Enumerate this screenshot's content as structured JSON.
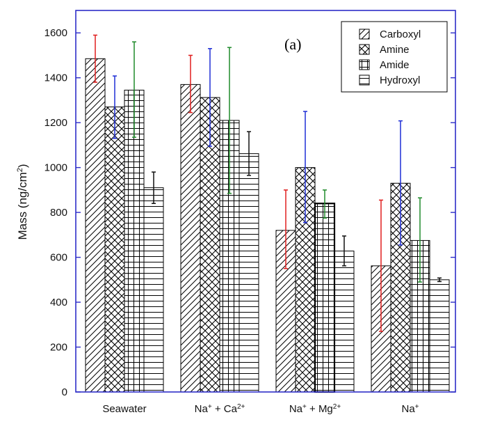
{
  "chart_data": {
    "type": "bar",
    "panel_label": "(a)",
    "ylabel": "Mass (ng/cm²)",
    "ylabel_parts": {
      "base": "Mass (ng/cm",
      "sup": "2",
      "end": ")"
    },
    "ylim": [
      0,
      1700
    ],
    "yticks": [
      0,
      200,
      400,
      600,
      800,
      1000,
      1200,
      1400,
      1600
    ],
    "legend_position": "top-right",
    "categories": [
      "Seawater",
      "Na+ + Ca2+",
      "Na+ + Mg2+",
      "Na+"
    ],
    "category_label_parts": [
      [
        {
          "t": "Seawater",
          "sup": ""
        }
      ],
      [
        {
          "t": "Na",
          "sup": "+"
        },
        {
          "t": " + Ca",
          "sup": "2+"
        }
      ],
      [
        {
          "t": "Na",
          "sup": "+"
        },
        {
          "t": " + Mg",
          "sup": "2+"
        }
      ],
      [
        {
          "t": "Na",
          "sup": "+"
        }
      ]
    ],
    "series": [
      {
        "name": "Carboxyl",
        "pattern": "diag",
        "error_color": "#e01e1e",
        "values": [
          1485,
          1370,
          720,
          562
        ],
        "err_low": [
          1380,
          1245,
          550,
          270
        ],
        "err_high": [
          1590,
          1500,
          900,
          855
        ]
      },
      {
        "name": "Amine",
        "pattern": "cross",
        "error_color": "#1e2ed6",
        "values": [
          1270,
          1312,
          1000,
          930
        ],
        "err_low": [
          1130,
          1095,
          755,
          655
        ],
        "err_high": [
          1408,
          1530,
          1250,
          1208
        ]
      },
      {
        "name": "Amide",
        "pattern": "grid",
        "error_color": "#1f8a2a",
        "values": [
          1345,
          1210,
          840,
          675
        ],
        "err_low": [
          1135,
          885,
          775,
          490
        ],
        "err_high": [
          1560,
          1535,
          900,
          865
        ]
      },
      {
        "name": "Hydroxyl",
        "pattern": "horiz",
        "error_color": "#111111",
        "values": [
          910,
          1062,
          628,
          500
        ],
        "err_low": [
          840,
          965,
          562,
          492
        ],
        "err_high": [
          980,
          1160,
          695,
          508
        ]
      }
    ]
  }
}
